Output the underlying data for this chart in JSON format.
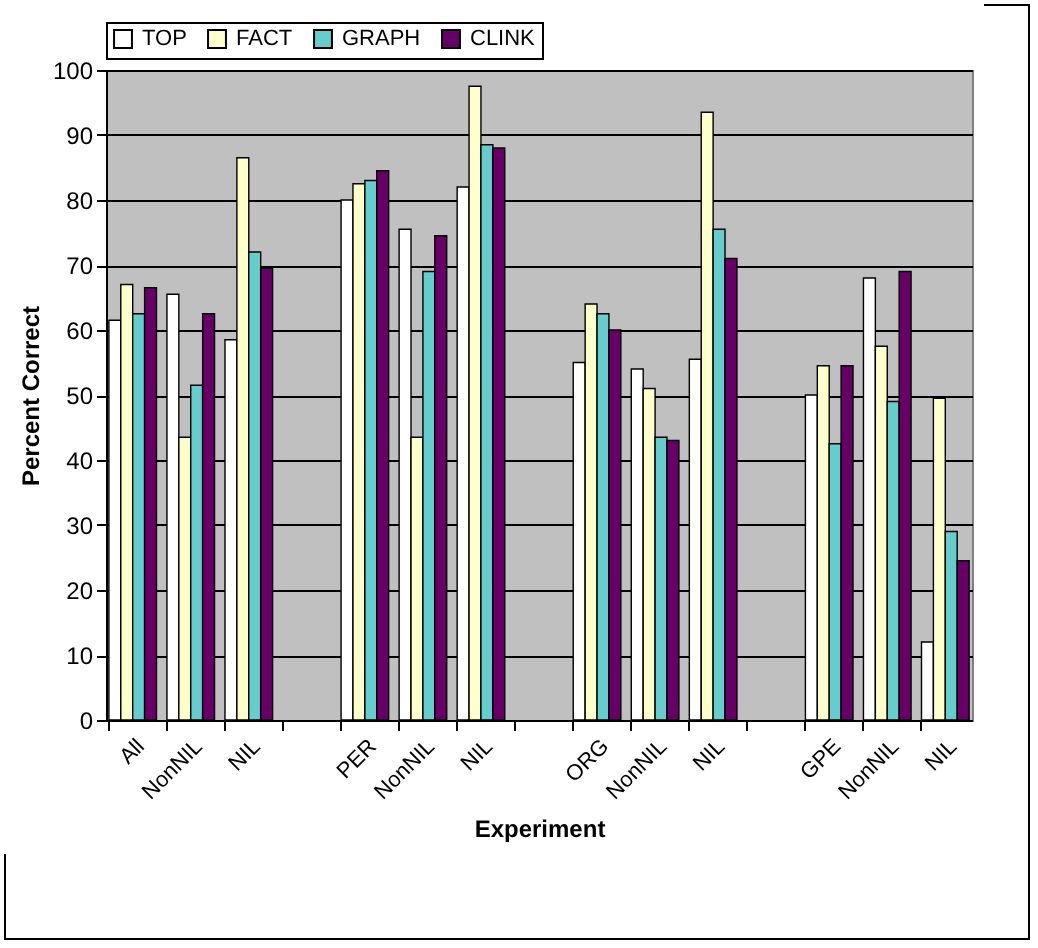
{
  "chart_data": {
    "type": "bar",
    "xlabel": "Experiment",
    "ylabel": "Percent Correct",
    "categories": [
      "All",
      "NonNIL",
      "NIL",
      null,
      "PER",
      "NonNIL",
      "NIL",
      null,
      "ORG",
      "NonNIL",
      "NIL",
      null,
      "GPE",
      "NonNIL",
      "NIL"
    ],
    "series": [
      {
        "name": "TOP",
        "color": "#ffffff",
        "values": [
          61.5,
          65.5,
          58.5,
          null,
          80,
          75.5,
          82,
          null,
          55,
          54,
          55.5,
          null,
          50,
          68,
          12
        ]
      },
      {
        "name": "FACT",
        "color": "#ffffcc",
        "values": [
          67,
          43.5,
          86.5,
          null,
          82.5,
          43.5,
          97.5,
          null,
          64,
          51,
          93.5,
          null,
          54.5,
          57.5,
          49.5
        ]
      },
      {
        "name": "GRAPH",
        "color": "#66cccc",
        "values": [
          62.5,
          51.5,
          72,
          null,
          83,
          69,
          88.5,
          null,
          62.5,
          43.5,
          75.5,
          null,
          42.5,
          49,
          29
        ]
      },
      {
        "name": "CLINK",
        "color": "#660066",
        "values": [
          66.5,
          62.5,
          69.5,
          null,
          84.5,
          74.5,
          88,
          null,
          60,
          43,
          71,
          null,
          54.5,
          69,
          24.5
        ]
      }
    ],
    "ylim": [
      0,
      100
    ],
    "yticks": [
      0,
      10,
      20,
      30,
      40,
      50,
      60,
      70,
      80,
      90,
      100
    ],
    "grid": "y",
    "legend": "top"
  }
}
